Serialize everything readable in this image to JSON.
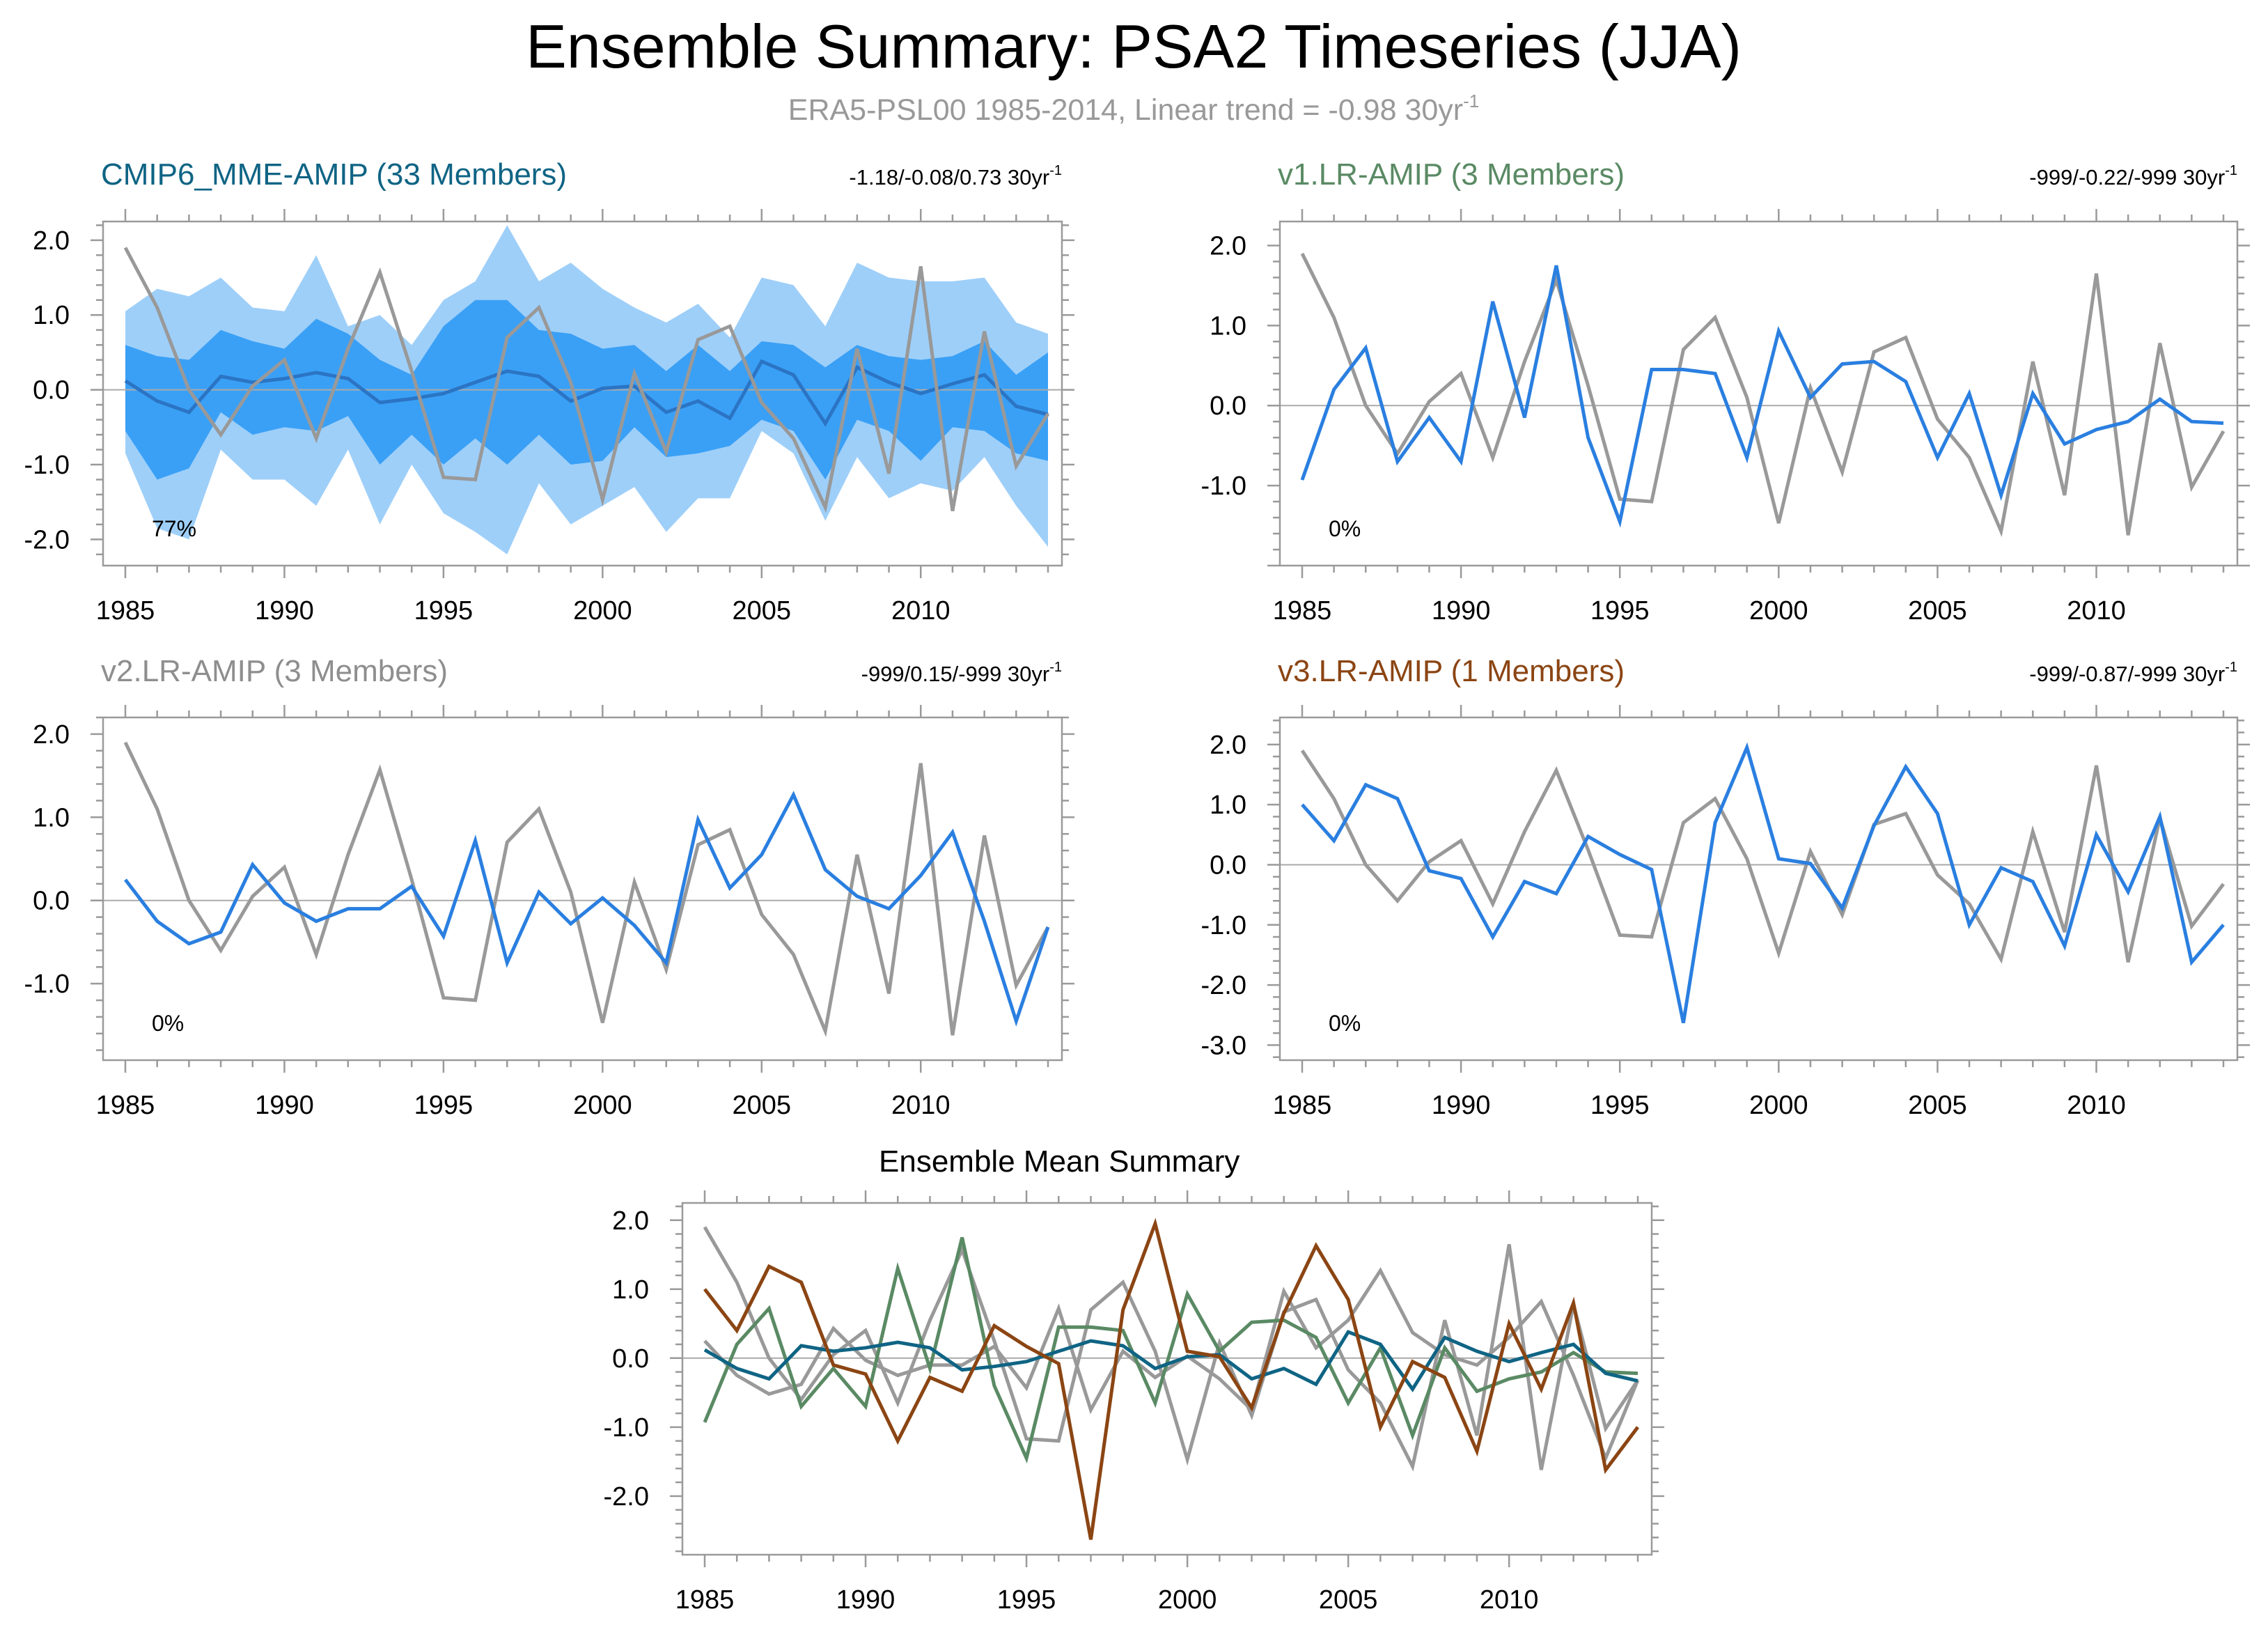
{
  "title": "Ensemble Summary: PSA2 Timeseries (JJA)",
  "subtitle": "ERA5-PSL00 1985-2014, Linear trend = -0.98 30yr",
  "subtitle_sup": "-1",
  "colors": {
    "observations": "#999999",
    "ensemble_mean": "#2a7fe0",
    "mme_line": "#2b74c4",
    "band_outer": "#9ecff9",
    "band_inner": "#3aa0f6",
    "zero_line": "#aaaaaa",
    "mme_title": "#0f6484",
    "v1_title": "#5a8a64",
    "v2_title": "#8e8e8e",
    "v3_title": "#8b4513",
    "summary_mme": "#0f6484",
    "summary_v1": "#5a8a64",
    "summary_v2": "#999999",
    "summary_v3": "#8b4513"
  },
  "chart_data": [
    {
      "type": "area",
      "title": "CMIP6_MME-AMIP (33 Members)",
      "trend_text": "-1.18/-0.08/0.73 30yr",
      "trend_sup": "-1",
      "percent_label": "77%",
      "xlim": [
        1985,
        2014
      ],
      "ylim": [
        -2.35,
        2.25
      ],
      "x_ticks": [
        1985,
        1990,
        1995,
        2000,
        2005,
        2010
      ],
      "y_ticks": [
        2.0,
        1.0,
        0.0,
        -1.0,
        -2.0
      ],
      "y_tick_labels": [
        "2.0",
        "1.0",
        "0.0",
        "-1.0",
        "-2.0"
      ],
      "x": [
        1985,
        1986,
        1987,
        1988,
        1989,
        1990,
        1991,
        1992,
        1993,
        1994,
        1995,
        1996,
        1997,
        1998,
        1999,
        2000,
        2001,
        2002,
        2003,
        2004,
        2005,
        2006,
        2007,
        2008,
        2009,
        2010,
        2011,
        2012,
        2013,
        2014
      ],
      "series": [
        {
          "role": "band_outer",
          "upper": [
            1.05,
            1.35,
            1.25,
            1.5,
            1.1,
            1.05,
            1.8,
            0.85,
            1.0,
            0.6,
            1.2,
            1.45,
            2.2,
            1.45,
            1.7,
            1.35,
            1.1,
            0.9,
            1.15,
            0.7,
            1.5,
            1.4,
            0.85,
            1.7,
            1.5,
            1.45,
            1.45,
            1.5,
            0.9,
            0.75
          ],
          "lower": [
            -0.85,
            -1.85,
            -2.0,
            -0.8,
            -1.2,
            -1.2,
            -1.55,
            -0.8,
            -1.8,
            -1.0,
            -1.65,
            -1.9,
            -2.2,
            -1.25,
            -1.8,
            -1.55,
            -1.3,
            -1.9,
            -1.45,
            -1.45,
            -0.55,
            -0.85,
            -1.75,
            -0.9,
            -1.45,
            -1.25,
            -1.35,
            -0.9,
            -1.55,
            -2.1
          ]
        },
        {
          "role": "band_inner",
          "upper": [
            0.6,
            0.45,
            0.4,
            0.8,
            0.65,
            0.55,
            0.95,
            0.75,
            0.4,
            0.2,
            0.85,
            1.2,
            1.2,
            0.8,
            0.75,
            0.55,
            0.6,
            0.25,
            0.6,
            0.25,
            0.65,
            0.6,
            0.3,
            0.6,
            0.45,
            0.4,
            0.45,
            0.65,
            0.2,
            0.5
          ],
          "lower": [
            -0.55,
            -1.2,
            -1.05,
            -0.3,
            -0.6,
            -0.5,
            -0.55,
            -0.35,
            -1.0,
            -0.6,
            -1.0,
            -0.65,
            -1.0,
            -0.6,
            -1.0,
            -0.95,
            -0.5,
            -0.9,
            -0.85,
            -0.75,
            -0.4,
            -0.55,
            -1.2,
            -0.4,
            -0.55,
            -0.95,
            -0.5,
            -0.55,
            -0.85,
            -0.95
          ]
        },
        {
          "role": "ensemble_mean",
          "values": [
            0.12,
            -0.15,
            -0.3,
            0.18,
            0.1,
            0.15,
            0.23,
            0.15,
            -0.17,
            -0.12,
            -0.05,
            0.1,
            0.25,
            0.18,
            -0.15,
            0.02,
            0.05,
            -0.3,
            -0.15,
            -0.38,
            0.38,
            0.2,
            -0.45,
            0.3,
            0.1,
            -0.05,
            0.08,
            0.2,
            -0.22,
            -0.33
          ]
        },
        {
          "role": "observations",
          "values": [
            1.9,
            1.1,
            0.0,
            -0.6,
            0.05,
            0.4,
            -0.65,
            0.55,
            1.57,
            0.25,
            -1.17,
            -1.2,
            0.7,
            1.1,
            0.1,
            -1.47,
            0.22,
            -0.83,
            0.67,
            0.85,
            -0.17,
            -0.65,
            -1.57,
            0.55,
            -1.12,
            1.65,
            -1.62,
            0.78,
            -1.02,
            -0.32
          ]
        }
      ]
    },
    {
      "type": "line",
      "title": "v1.LR-AMIP (3 Members)",
      "trend_text": "-999/-0.22/-999 30yr",
      "trend_sup": "-1",
      "percent_label": "0%",
      "xlim": [
        1985,
        2014
      ],
      "ylim": [
        -2.0,
        2.3
      ],
      "x_ticks": [
        1985,
        1990,
        1995,
        2000,
        2005,
        2010
      ],
      "y_ticks": [
        2.0,
        1.0,
        0.0,
        -1.0
      ],
      "y_tick_labels": [
        "2.0",
        "1.0",
        "0.0",
        "-1.0"
      ],
      "x": [
        1985,
        1986,
        1987,
        1988,
        1989,
        1990,
        1991,
        1992,
        1993,
        1994,
        1995,
        1996,
        1997,
        1998,
        1999,
        2000,
        2001,
        2002,
        2003,
        2004,
        2005,
        2006,
        2007,
        2008,
        2009,
        2010,
        2011,
        2012,
        2013,
        2014
      ],
      "series": [
        {
          "role": "observations",
          "values": [
            1.9,
            1.1,
            0.0,
            -0.6,
            0.05,
            0.4,
            -0.65,
            0.55,
            1.57,
            0.25,
            -1.17,
            -1.2,
            0.7,
            1.1,
            0.1,
            -1.47,
            0.22,
            -0.83,
            0.67,
            0.85,
            -0.17,
            -0.65,
            -1.57,
            0.55,
            -1.12,
            1.65,
            -1.62,
            0.78,
            -1.02,
            -0.32
          ]
        },
        {
          "role": "ensemble_mean",
          "values": [
            -0.93,
            0.2,
            0.72,
            -0.7,
            -0.15,
            -0.7,
            1.3,
            -0.15,
            1.75,
            -0.4,
            -1.45,
            0.45,
            0.45,
            0.4,
            -0.65,
            0.93,
            0.1,
            0.52,
            0.55,
            0.3,
            -0.65,
            0.15,
            -1.12,
            0.15,
            -0.48,
            -0.3,
            -0.2,
            0.08,
            -0.2,
            -0.22
          ]
        }
      ]
    },
    {
      "type": "line",
      "title": "v2.LR-AMIP (3 Members)",
      "trend_text": "-999/0.15/-999 30yr",
      "trend_sup": "-1",
      "percent_label": "0%",
      "xlim": [
        1985,
        2014
      ],
      "ylim": [
        -1.92,
        2.2
      ],
      "x_ticks": [
        1985,
        1990,
        1995,
        2000,
        2005,
        2010
      ],
      "y_ticks": [
        2.0,
        1.0,
        0.0,
        -1.0
      ],
      "y_tick_labels": [
        "2.0",
        "1.0",
        "0.0",
        "-1.0"
      ],
      "x": [
        1985,
        1986,
        1987,
        1988,
        1989,
        1990,
        1991,
        1992,
        1993,
        1994,
        1995,
        1996,
        1997,
        1998,
        1999,
        2000,
        2001,
        2002,
        2003,
        2004,
        2005,
        2006,
        2007,
        2008,
        2009,
        2010,
        2011,
        2012,
        2013,
        2014
      ],
      "series": [
        {
          "role": "observations",
          "values": [
            1.9,
            1.1,
            0.0,
            -0.6,
            0.05,
            0.4,
            -0.65,
            0.55,
            1.57,
            0.25,
            -1.17,
            -1.2,
            0.7,
            1.1,
            0.1,
            -1.47,
            0.22,
            -0.83,
            0.67,
            0.85,
            -0.17,
            -0.65,
            -1.57,
            0.55,
            -1.12,
            1.65,
            -1.62,
            0.78,
            -1.02,
            -0.32
          ]
        },
        {
          "role": "ensemble_mean",
          "values": [
            0.25,
            -0.25,
            -0.52,
            -0.38,
            0.43,
            -0.03,
            -0.25,
            -0.1,
            -0.1,
            0.17,
            -0.43,
            0.72,
            -0.75,
            0.1,
            -0.28,
            0.03,
            -0.3,
            -0.75,
            0.97,
            0.15,
            0.55,
            1.27,
            0.37,
            0.05,
            -0.1,
            0.3,
            0.82,
            -0.25,
            -1.45,
            -0.32
          ]
        }
      ]
    },
    {
      "type": "line",
      "title": "v3.LR-AMIP (1 Members)",
      "trend_text": "-999/-0.87/-999 30yr",
      "trend_sup": "-1",
      "percent_label": "0%",
      "xlim": [
        1985,
        2014
      ],
      "ylim": [
        -3.25,
        2.45
      ],
      "x_ticks": [
        1985,
        1990,
        1995,
        2000,
        2005,
        2010
      ],
      "y_ticks": [
        2.0,
        1.0,
        0.0,
        -1.0,
        -2.0,
        -3.0
      ],
      "y_tick_labels": [
        "2.0",
        "1.0",
        "0.0",
        "-1.0",
        "-2.0",
        "-3.0"
      ],
      "x": [
        1985,
        1986,
        1987,
        1988,
        1989,
        1990,
        1991,
        1992,
        1993,
        1994,
        1995,
        1996,
        1997,
        1998,
        1999,
        2000,
        2001,
        2002,
        2003,
        2004,
        2005,
        2006,
        2007,
        2008,
        2009,
        2010,
        2011,
        2012,
        2013,
        2014
      ],
      "series": [
        {
          "role": "observations",
          "values": [
            1.9,
            1.1,
            0.0,
            -0.6,
            0.05,
            0.4,
            -0.65,
            0.55,
            1.57,
            0.25,
            -1.17,
            -1.2,
            0.7,
            1.1,
            0.1,
            -1.47,
            0.22,
            -0.83,
            0.67,
            0.85,
            -0.17,
            -0.65,
            -1.57,
            0.55,
            -1.12,
            1.65,
            -1.62,
            0.78,
            -1.02,
            -0.32
          ]
        },
        {
          "role": "ensemble_mean",
          "values": [
            1.0,
            0.4,
            1.33,
            1.1,
            -0.1,
            -0.23,
            -1.2,
            -0.28,
            -0.48,
            0.47,
            0.17,
            -0.08,
            -2.63,
            0.7,
            1.95,
            0.1,
            0.02,
            -0.72,
            0.65,
            1.63,
            0.85,
            -1.0,
            -0.05,
            -0.28,
            -1.35,
            0.5,
            -0.45,
            0.8,
            -1.62,
            -1.0
          ]
        }
      ]
    },
    {
      "type": "line",
      "title": "Ensemble Mean Summary",
      "xlim": [
        1985,
        2014
      ],
      "ylim": [
        -2.85,
        2.25
      ],
      "x_ticks": [
        1985,
        1990,
        1995,
        2000,
        2005,
        2010
      ],
      "y_ticks": [
        2.0,
        1.0,
        0.0,
        -1.0,
        -2.0
      ],
      "y_tick_labels": [
        "2.0",
        "1.0",
        "0.0",
        "-1.0",
        "-2.0"
      ],
      "x": [
        1985,
        1986,
        1987,
        1988,
        1989,
        1990,
        1991,
        1992,
        1993,
        1994,
        1995,
        1996,
        1997,
        1998,
        1999,
        2000,
        2001,
        2002,
        2003,
        2004,
        2005,
        2006,
        2007,
        2008,
        2009,
        2010,
        2011,
        2012,
        2013,
        2014
      ],
      "series": [
        {
          "role": "summary_v2",
          "values": [
            0.25,
            -0.25,
            -0.52,
            -0.38,
            0.43,
            -0.03,
            -0.25,
            -0.1,
            -0.1,
            0.17,
            -0.43,
            0.72,
            -0.75,
            0.1,
            -0.28,
            0.03,
            -0.3,
            -0.75,
            0.97,
            0.15,
            0.55,
            1.27,
            0.37,
            0.05,
            -0.1,
            0.3,
            0.82,
            -0.25,
            -1.45,
            -0.32
          ]
        },
        {
          "role": "summary_obs",
          "values": [
            1.9,
            1.1,
            0.0,
            -0.6,
            0.05,
            0.4,
            -0.65,
            0.55,
            1.57,
            0.25,
            -1.17,
            -1.2,
            0.7,
            1.1,
            0.1,
            -1.47,
            0.22,
            -0.83,
            0.67,
            0.85,
            -0.17,
            -0.65,
            -1.57,
            0.55,
            -1.12,
            1.65,
            -1.62,
            0.78,
            -1.02,
            -0.32
          ]
        },
        {
          "role": "summary_v1",
          "values": [
            -0.93,
            0.2,
            0.72,
            -0.7,
            -0.15,
            -0.7,
            1.3,
            -0.15,
            1.75,
            -0.4,
            -1.45,
            0.45,
            0.45,
            0.4,
            -0.65,
            0.93,
            0.1,
            0.52,
            0.55,
            0.3,
            -0.65,
            0.15,
            -1.12,
            0.15,
            -0.48,
            -0.3,
            -0.2,
            0.08,
            -0.2,
            -0.22
          ]
        },
        {
          "role": "summary_mme",
          "values": [
            0.12,
            -0.15,
            -0.3,
            0.18,
            0.1,
            0.15,
            0.23,
            0.15,
            -0.17,
            -0.12,
            -0.05,
            0.1,
            0.25,
            0.18,
            -0.15,
            0.02,
            0.05,
            -0.3,
            -0.15,
            -0.38,
            0.38,
            0.2,
            -0.45,
            0.3,
            0.1,
            -0.05,
            0.08,
            0.2,
            -0.22,
            -0.33
          ]
        },
        {
          "role": "summary_v3",
          "values": [
            1.0,
            0.4,
            1.33,
            1.1,
            -0.1,
            -0.23,
            -1.2,
            -0.28,
            -0.48,
            0.47,
            0.17,
            -0.08,
            -2.63,
            0.7,
            1.95,
            0.1,
            0.02,
            -0.72,
            0.65,
            1.63,
            0.85,
            -1.0,
            -0.05,
            -0.28,
            -1.35,
            0.5,
            -0.45,
            0.8,
            -1.62,
            -1.0
          ]
        }
      ]
    }
  ]
}
